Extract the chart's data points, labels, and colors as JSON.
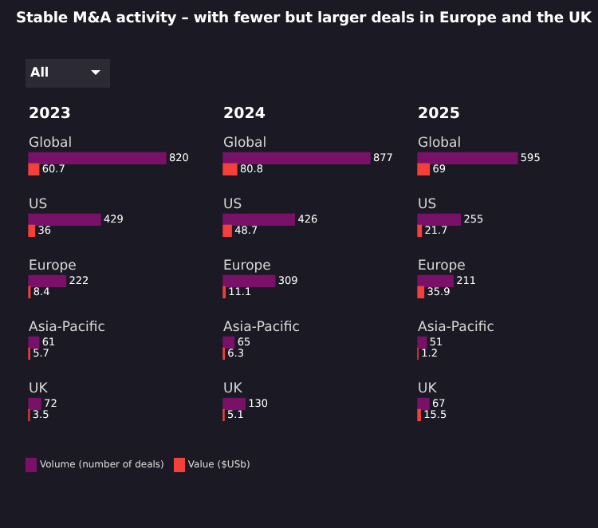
{
  "chart_data": [
    {
      "type": "bar",
      "title": "Stable M&A activity – with fewer but larger deals in Europe and the UK",
      "subtitle": "2023",
      "annotations": [
        "All"
      ],
      "orientation": "horizontal",
      "categories": [
        "Global",
        "US",
        "Europe",
        "Asia-Pacific",
        "UK"
      ],
      "series": [
        {
          "name": "Volume (number of deals)",
          "color": "#7a1168",
          "values": [
            820,
            429,
            222,
            61,
            72
          ]
        },
        {
          "name": "Value ($USb)",
          "color": "#f4403a",
          "values": [
            60.7,
            36,
            8.4,
            5.7,
            3.5
          ]
        }
      ],
      "tick_labels": false,
      "data_labels": true,
      "legend": "bottom"
    },
    {
      "type": "bar",
      "subtitle": "2024",
      "orientation": "horizontal",
      "categories": [
        "Global",
        "US",
        "Europe",
        "Asia-Pacific",
        "UK"
      ],
      "series": [
        {
          "color": "#7a1168",
          "values": [
            877,
            426,
            309,
            65,
            130
          ]
        },
        {
          "color": "#f4403a",
          "values": [
            80.8,
            48.7,
            11.1,
            6.3,
            5.1
          ]
        }
      ],
      "tick_labels": false,
      "data_labels": true
    },
    {
      "type": "bar",
      "subtitle": "2025",
      "orientation": "horizontal",
      "categories": [
        "Global",
        "US",
        "Europe",
        "Asia-Pacific",
        "UK"
      ],
      "series": [
        {
          "color": "#7a1168",
          "values": [
            595,
            255,
            211,
            51,
            67
          ]
        },
        {
          "color": "#f4403a",
          "values": [
            69,
            21.7,
            35.9,
            1.2,
            15.5
          ]
        }
      ],
      "tick_labels": false,
      "data_labels": true
    }
  ]
}
